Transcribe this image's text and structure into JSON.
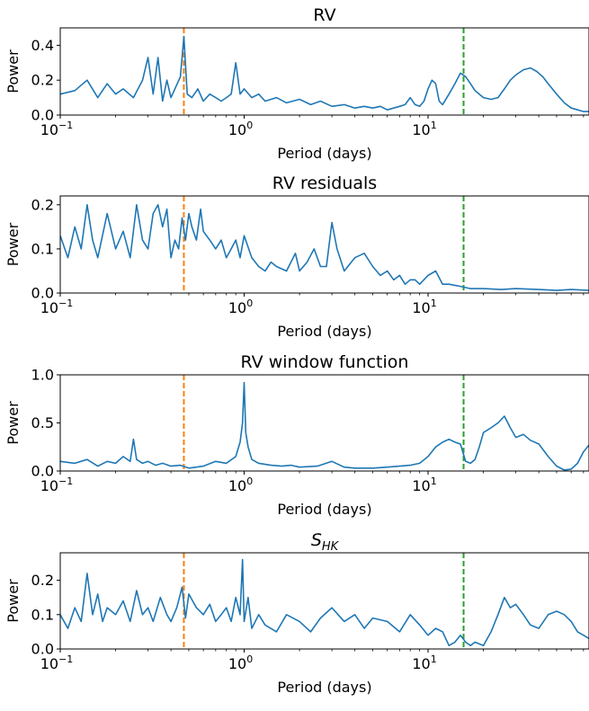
{
  "figure": {
    "background": "#ffffff"
  },
  "colors": {
    "series": "#1f77b4",
    "line_a": "#ff7f0e",
    "line_b": "#2ca02c"
  },
  "chart_data": [
    {
      "type": "line",
      "title": "RV",
      "xlabel": "Period (days)",
      "ylabel": "Power",
      "xscale": "log",
      "xlim": [
        0.1,
        75
      ],
      "ylim": [
        0,
        0.5
      ],
      "xticks": [
        {
          "base": "10",
          "exp": "−1"
        },
        {
          "base": "10",
          "exp": "0"
        },
        {
          "base": "10",
          "exp": "1"
        }
      ],
      "yticks": [
        "0.0",
        "0.2",
        "0.4"
      ],
      "ytick_values": [
        0,
        0.2,
        0.4
      ],
      "vlines": [
        {
          "x": 0.47,
          "color": "#ff7f0e",
          "style": "dashed"
        },
        {
          "x": 15.6,
          "color": "#2ca02c",
          "style": "dashed"
        }
      ],
      "grid": false,
      "series": [
        {
          "x": [
            0.1,
            0.12,
            0.14,
            0.16,
            0.18,
            0.2,
            0.22,
            0.25,
            0.28,
            0.3,
            0.32,
            0.34,
            0.36,
            0.38,
            0.4,
            0.42,
            0.45,
            0.47,
            0.49,
            0.52,
            0.56,
            0.6,
            0.65,
            0.7,
            0.75,
            0.8,
            0.85,
            0.9,
            0.95,
            1.0,
            1.1,
            1.2,
            1.3,
            1.5,
            1.7,
            2.0,
            2.3,
            2.6,
            3.0,
            3.5,
            4.0,
            4.5,
            5.0,
            5.5,
            6.0,
            6.5,
            7.0,
            7.5,
            8.0,
            8.5,
            9.0,
            9.5,
            10.0,
            10.5,
            11.0,
            11.5,
            12.0,
            13.0,
            14.0,
            15.0,
            16.0,
            17.0,
            18.0,
            19.0,
            20.0,
            22.0,
            24.0,
            26.0,
            28.0,
            30.0,
            33.0,
            36.0,
            39.0,
            42.0,
            45.0,
            50.0,
            55.0,
            60.0,
            65.0,
            70.0,
            75.0
          ],
          "y": [
            0.12,
            0.14,
            0.2,
            0.1,
            0.18,
            0.12,
            0.15,
            0.1,
            0.2,
            0.33,
            0.12,
            0.33,
            0.08,
            0.2,
            0.1,
            0.15,
            0.22,
            0.45,
            0.12,
            0.1,
            0.15,
            0.08,
            0.12,
            0.1,
            0.08,
            0.1,
            0.12,
            0.3,
            0.12,
            0.15,
            0.1,
            0.12,
            0.08,
            0.1,
            0.07,
            0.09,
            0.06,
            0.08,
            0.05,
            0.06,
            0.04,
            0.05,
            0.04,
            0.05,
            0.03,
            0.04,
            0.05,
            0.06,
            0.1,
            0.06,
            0.05,
            0.08,
            0.15,
            0.2,
            0.18,
            0.08,
            0.06,
            0.12,
            0.18,
            0.24,
            0.22,
            0.18,
            0.14,
            0.12,
            0.1,
            0.09,
            0.1,
            0.15,
            0.2,
            0.23,
            0.26,
            0.27,
            0.25,
            0.22,
            0.18,
            0.12,
            0.07,
            0.04,
            0.03,
            0.02,
            0.02
          ]
        }
      ]
    },
    {
      "type": "line",
      "title": "RV residuals",
      "xlabel": "Period (days)",
      "ylabel": "Power",
      "xscale": "log",
      "xlim": [
        0.1,
        75
      ],
      "ylim": [
        0,
        0.22
      ],
      "xticks": [
        {
          "base": "10",
          "exp": "−1"
        },
        {
          "base": "10",
          "exp": "0"
        },
        {
          "base": "10",
          "exp": "1"
        }
      ],
      "yticks": [
        "0.0",
        "0.1",
        "0.2"
      ],
      "ytick_values": [
        0,
        0.1,
        0.2
      ],
      "vlines": [
        {
          "x": 0.47,
          "color": "#ff7f0e",
          "style": "dashed"
        },
        {
          "x": 15.6,
          "color": "#2ca02c",
          "style": "dashed"
        }
      ],
      "grid": false,
      "series": [
        {
          "x": [
            0.1,
            0.11,
            0.12,
            0.13,
            0.14,
            0.15,
            0.16,
            0.18,
            0.2,
            0.22,
            0.24,
            0.26,
            0.28,
            0.3,
            0.32,
            0.34,
            0.36,
            0.38,
            0.4,
            0.42,
            0.44,
            0.46,
            0.48,
            0.5,
            0.52,
            0.55,
            0.58,
            0.6,
            0.65,
            0.7,
            0.75,
            0.8,
            0.85,
            0.9,
            0.95,
            1.0,
            1.1,
            1.2,
            1.3,
            1.4,
            1.5,
            1.7,
            1.9,
            2.0,
            2.2,
            2.4,
            2.6,
            2.8,
            3.0,
            3.2,
            3.5,
            4.0,
            4.5,
            5.0,
            5.5,
            6.0,
            6.5,
            7.0,
            7.5,
            8.0,
            8.5,
            9.0,
            10.0,
            11.0,
            12.0,
            13.0,
            15.0,
            17.0,
            20.0,
            25.0,
            30.0,
            40.0,
            50.0,
            60.0,
            75.0
          ],
          "y": [
            0.13,
            0.08,
            0.15,
            0.1,
            0.2,
            0.12,
            0.08,
            0.18,
            0.1,
            0.14,
            0.08,
            0.2,
            0.12,
            0.1,
            0.18,
            0.2,
            0.15,
            0.19,
            0.08,
            0.12,
            0.1,
            0.17,
            0.12,
            0.18,
            0.15,
            0.12,
            0.19,
            0.14,
            0.12,
            0.1,
            0.12,
            0.08,
            0.1,
            0.12,
            0.08,
            0.13,
            0.08,
            0.06,
            0.05,
            0.07,
            0.06,
            0.05,
            0.09,
            0.05,
            0.07,
            0.1,
            0.06,
            0.06,
            0.16,
            0.1,
            0.05,
            0.08,
            0.09,
            0.06,
            0.04,
            0.05,
            0.03,
            0.04,
            0.02,
            0.03,
            0.03,
            0.02,
            0.04,
            0.05,
            0.02,
            0.02,
            0.015,
            0.01,
            0.01,
            0.008,
            0.01,
            0.008,
            0.006,
            0.008,
            0.006
          ]
        }
      ]
    },
    {
      "type": "line",
      "title": "RV window function",
      "xlabel": "Period (days)",
      "ylabel": "Power",
      "xscale": "log",
      "xlim": [
        0.1,
        75
      ],
      "ylim": [
        0,
        1.0
      ],
      "xticks": [
        {
          "base": "10",
          "exp": "−1"
        },
        {
          "base": "10",
          "exp": "0"
        },
        {
          "base": "10",
          "exp": "1"
        }
      ],
      "yticks": [
        "0.0",
        "0.5",
        "1.0"
      ],
      "ytick_values": [
        0,
        0.5,
        1.0
      ],
      "vlines": [
        {
          "x": 0.47,
          "color": "#ff7f0e",
          "style": "dashed"
        },
        {
          "x": 15.6,
          "color": "#2ca02c",
          "style": "dashed"
        }
      ],
      "grid": false,
      "series": [
        {
          "x": [
            0.1,
            0.12,
            0.14,
            0.16,
            0.18,
            0.2,
            0.22,
            0.24,
            0.25,
            0.26,
            0.28,
            0.3,
            0.33,
            0.36,
            0.4,
            0.45,
            0.5,
            0.55,
            0.6,
            0.7,
            0.8,
            0.9,
            0.95,
            0.98,
            1.0,
            1.02,
            1.05,
            1.1,
            1.2,
            1.4,
            1.6,
            1.8,
            2.0,
            2.5,
            3.0,
            3.5,
            4.0,
            5.0,
            6.0,
            7.0,
            8.0,
            9.0,
            10.0,
            11.0,
            12.0,
            13.0,
            14.0,
            15.0,
            16.0,
            17.0,
            18.0,
            19.0,
            20.0,
            22.0,
            24.0,
            26.0,
            28.0,
            30.0,
            33.0,
            36.0,
            40.0,
            45.0,
            50.0,
            55.0,
            60.0,
            65.0,
            70.0,
            75.0
          ],
          "y": [
            0.1,
            0.08,
            0.12,
            0.05,
            0.1,
            0.08,
            0.15,
            0.1,
            0.33,
            0.12,
            0.08,
            0.1,
            0.06,
            0.08,
            0.05,
            0.06,
            0.03,
            0.04,
            0.05,
            0.1,
            0.08,
            0.15,
            0.3,
            0.5,
            0.92,
            0.4,
            0.25,
            0.12,
            0.08,
            0.06,
            0.05,
            0.06,
            0.04,
            0.05,
            0.1,
            0.04,
            0.03,
            0.03,
            0.04,
            0.05,
            0.06,
            0.08,
            0.15,
            0.25,
            0.3,
            0.33,
            0.3,
            0.28,
            0.1,
            0.08,
            0.12,
            0.25,
            0.4,
            0.45,
            0.5,
            0.57,
            0.45,
            0.35,
            0.38,
            0.32,
            0.28,
            0.15,
            0.05,
            0.01,
            0.02,
            0.08,
            0.2,
            0.27
          ]
        }
      ]
    },
    {
      "type": "line",
      "title": "S",
      "title_sub": "HK",
      "xlabel": "Period (days)",
      "ylabel": "Power",
      "xscale": "log",
      "xlim": [
        0.1,
        75
      ],
      "ylim": [
        0,
        0.28
      ],
      "xticks": [
        {
          "base": "10",
          "exp": "−1"
        },
        {
          "base": "10",
          "exp": "0"
        },
        {
          "base": "10",
          "exp": "1"
        }
      ],
      "yticks": [
        "0.0",
        "0.1",
        "0.2"
      ],
      "ytick_values": [
        0,
        0.1,
        0.2
      ],
      "vlines": [
        {
          "x": 0.47,
          "color": "#ff7f0e",
          "style": "dashed"
        },
        {
          "x": 15.6,
          "color": "#2ca02c",
          "style": "dashed"
        }
      ],
      "grid": false,
      "series": [
        {
          "x": [
            0.1,
            0.11,
            0.12,
            0.13,
            0.14,
            0.15,
            0.16,
            0.17,
            0.18,
            0.2,
            0.22,
            0.24,
            0.26,
            0.28,
            0.3,
            0.32,
            0.35,
            0.38,
            0.4,
            0.43,
            0.46,
            0.48,
            0.5,
            0.55,
            0.6,
            0.65,
            0.7,
            0.75,
            0.8,
            0.85,
            0.9,
            0.95,
            0.98,
            1.0,
            1.05,
            1.1,
            1.2,
            1.3,
            1.5,
            1.7,
            2.0,
            2.3,
            2.6,
            3.0,
            3.5,
            4.0,
            4.5,
            5.0,
            6.0,
            7.0,
            8.0,
            9.0,
            10.0,
            11.0,
            12.0,
            13.0,
            14.0,
            15.0,
            16.0,
            17.0,
            18.0,
            20.0,
            22.0,
            24.0,
            26.0,
            28.0,
            30.0,
            33.0,
            36.0,
            40.0,
            45.0,
            50.0,
            55.0,
            60.0,
            65.0,
            70.0,
            75.0
          ],
          "y": [
            0.1,
            0.06,
            0.12,
            0.08,
            0.22,
            0.1,
            0.16,
            0.08,
            0.12,
            0.1,
            0.14,
            0.08,
            0.17,
            0.1,
            0.12,
            0.08,
            0.15,
            0.1,
            0.08,
            0.12,
            0.18,
            0.09,
            0.16,
            0.12,
            0.1,
            0.13,
            0.08,
            0.1,
            0.12,
            0.08,
            0.15,
            0.1,
            0.26,
            0.08,
            0.15,
            0.06,
            0.1,
            0.07,
            0.05,
            0.1,
            0.08,
            0.05,
            0.09,
            0.12,
            0.08,
            0.1,
            0.06,
            0.09,
            0.08,
            0.05,
            0.1,
            0.07,
            0.04,
            0.06,
            0.05,
            0.01,
            0.02,
            0.04,
            0.02,
            0.01,
            0.02,
            0.01,
            0.05,
            0.1,
            0.15,
            0.12,
            0.13,
            0.1,
            0.07,
            0.06,
            0.1,
            0.11,
            0.1,
            0.08,
            0.05,
            0.04,
            0.03
          ]
        }
      ]
    }
  ]
}
